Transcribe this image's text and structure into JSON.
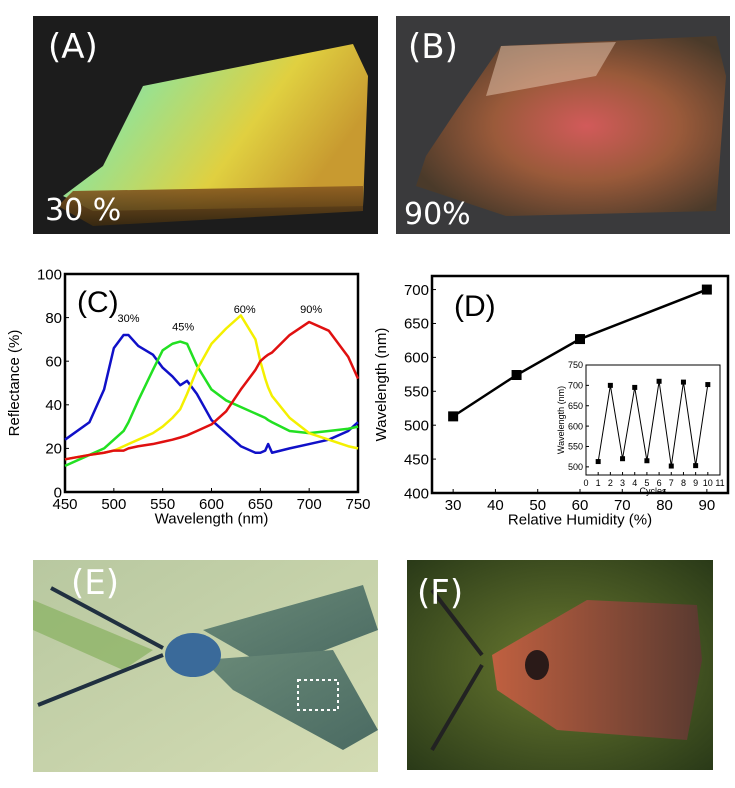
{
  "figure": {
    "panels": {
      "A": {
        "label": "(A)",
        "caption": "30 %",
        "description": "iridescent film sample, green-yellow-blue on dark background"
      },
      "B": {
        "label": "(B)",
        "caption": "90%",
        "description": "iridescent film sample, red-brown on dark background"
      },
      "C": {
        "label": "(C)"
      },
      "D": {
        "label": "(D)"
      },
      "E": {
        "label": "(E)",
        "description": "green metallic moth with dotted selection box on wing"
      },
      "F": {
        "label": "(F)",
        "description": "red-brown moth on green background"
      }
    }
  },
  "chart_data": [
    {
      "id": "C",
      "type": "line",
      "title": "",
      "xlabel": "Wavelength (nm)",
      "ylabel": "Reflectance (%)",
      "xlim": [
        450,
        750
      ],
      "ylim": [
        0,
        100
      ],
      "xticks": [
        450,
        500,
        550,
        600,
        650,
        700,
        750
      ],
      "yticks": [
        0,
        20,
        40,
        60,
        80,
        100
      ],
      "grid": false,
      "legend": "inline-labels",
      "x": [
        450,
        475,
        490,
        500,
        510,
        515,
        525,
        540,
        550,
        560,
        568,
        575,
        585,
        600,
        615,
        630,
        645,
        650,
        655,
        658,
        662,
        680,
        700,
        720,
        740,
        750
      ],
      "series": [
        {
          "name": "30%",
          "color": "#1010c8",
          "label_at": [
            515,
            78
          ],
          "values": [
            24,
            32,
            47,
            66,
            72,
            72,
            67,
            63,
            57,
            53,
            49,
            51,
            45,
            33,
            27,
            21,
            18,
            18,
            19,
            22,
            18,
            20,
            22,
            24,
            28,
            32
          ]
        },
        {
          "name": "45%",
          "color": "#22e022",
          "label_at": [
            571,
            74
          ],
          "values": [
            12,
            17,
            20,
            24,
            28,
            32,
            42,
            56,
            65,
            68,
            69,
            68,
            58,
            47,
            42,
            39,
            36,
            35,
            34,
            33,
            32,
            28,
            27,
            28,
            29,
            30
          ]
        },
        {
          "name": "60%",
          "color": "#f4f000",
          "label_at": [
            634,
            82
          ],
          "values": [
            15,
            17,
            18,
            19,
            21,
            22,
            24,
            27,
            30,
            34,
            38,
            45,
            56,
            68,
            75,
            81,
            70,
            60,
            52,
            48,
            44,
            34,
            27,
            24,
            21,
            20
          ]
        },
        {
          "name": "90%",
          "color": "#e01010",
          "label_at": [
            702,
            82
          ],
          "values": [
            15,
            17,
            18,
            19,
            19,
            20,
            21,
            22,
            23,
            24,
            25,
            26,
            28,
            31,
            37,
            47,
            56,
            60,
            62,
            63,
            64,
            72,
            78,
            74,
            62,
            52
          ]
        }
      ]
    },
    {
      "id": "D",
      "type": "line",
      "title": "",
      "xlabel": "Relative Humidity (%)",
      "ylabel": "Wavelength (nm)",
      "xlim": [
        25,
        95
      ],
      "ylim": [
        400,
        720
      ],
      "xticks": [
        30,
        40,
        50,
        60,
        70,
        80,
        90
      ],
      "yticks": [
        400,
        450,
        500,
        550,
        600,
        650,
        700
      ],
      "grid": false,
      "marker": "square",
      "color": "#000000",
      "x": [
        30,
        45,
        60,
        90
      ],
      "values": [
        513,
        574,
        627,
        700
      ],
      "inset": {
        "type": "line",
        "xlabel": "Cycles",
        "ylabel": "Wavelength (nm)",
        "xlim": [
          0,
          11
        ],
        "ylim": [
          480,
          750
        ],
        "xticks": [
          0,
          1,
          2,
          3,
          4,
          5,
          6,
          7,
          8,
          9,
          10,
          11
        ],
        "yticks": [
          500,
          550,
          600,
          650,
          700,
          750
        ],
        "marker": "square",
        "x": [
          1,
          2,
          3,
          4,
          5,
          6,
          7,
          8,
          9,
          10
        ],
        "values": [
          513,
          700,
          520,
          695,
          515,
          710,
          502,
          708,
          503,
          702
        ]
      }
    }
  ]
}
